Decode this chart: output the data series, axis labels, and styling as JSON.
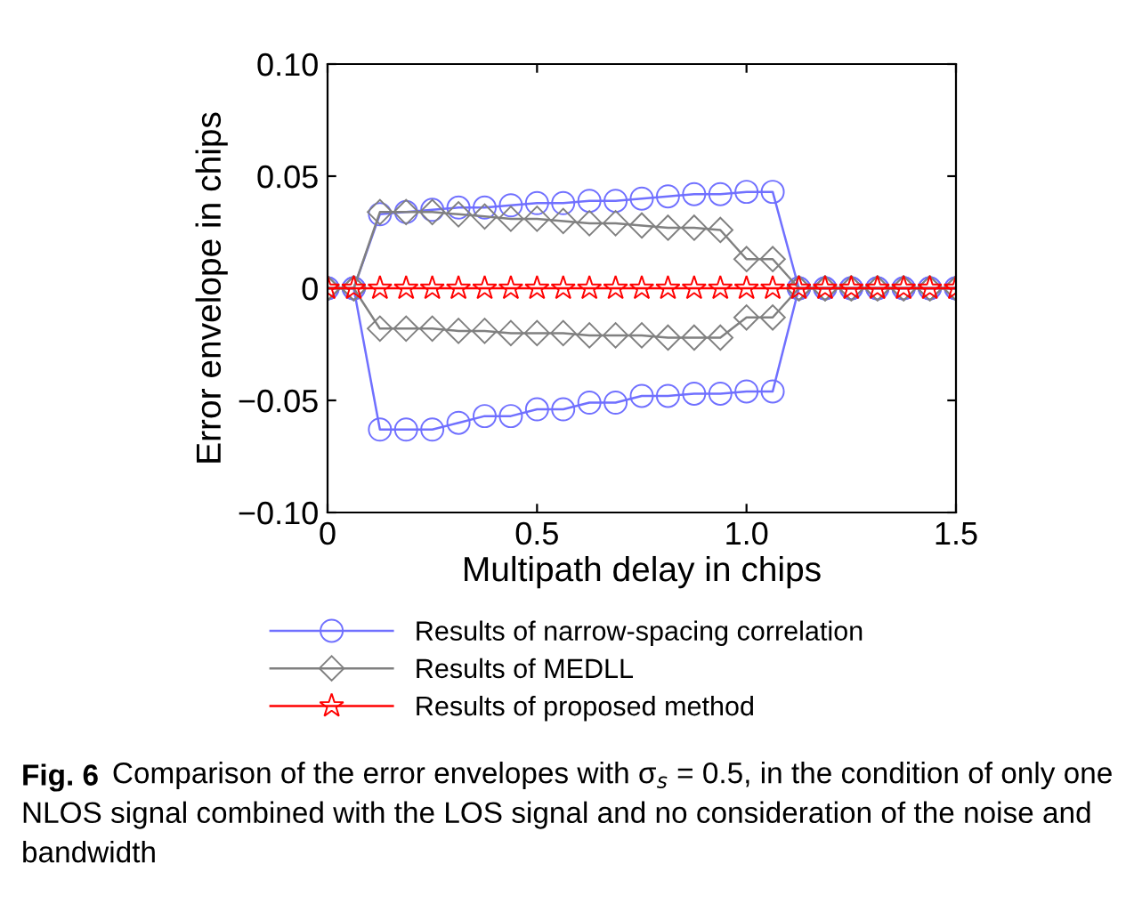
{
  "chart_data": {
    "type": "line",
    "x": [
      0,
      0.0625,
      0.125,
      0.1875,
      0.25,
      0.3125,
      0.375,
      0.4375,
      0.5,
      0.5625,
      0.625,
      0.6875,
      0.75,
      0.8125,
      0.875,
      0.9375,
      1.0,
      1.0625,
      1.125,
      1.1875,
      1.25,
      1.3125,
      1.375,
      1.4375,
      1.5
    ],
    "series": [
      {
        "name": "Results of narrow-spacing correlation",
        "color": "#7070ff",
        "marker": "circle",
        "values": [
          0,
          0,
          0.033,
          0.034,
          0.035,
          0.036,
          0.036,
          0.037,
          0.038,
          0.038,
          0.039,
          0.039,
          0.04,
          0.041,
          0.042,
          0.042,
          0.043,
          0.043,
          0,
          0,
          0,
          0,
          0,
          0,
          0
        ]
      },
      {
        "color": "#7070ff",
        "marker": "circle",
        "values": [
          0,
          0,
          -0.063,
          -0.063,
          -0.063,
          -0.06,
          -0.057,
          -0.057,
          -0.054,
          -0.054,
          -0.051,
          -0.051,
          -0.048,
          -0.048,
          -0.047,
          -0.047,
          -0.046,
          -0.046,
          0,
          0,
          0,
          0,
          0,
          0,
          0
        ]
      },
      {
        "name": "Results of MEDLL",
        "color": "#808080",
        "marker": "diamond",
        "values": [
          0,
          0,
          0.034,
          0.034,
          0.034,
          0.033,
          0.032,
          0.031,
          0.031,
          0.03,
          0.029,
          0.029,
          0.028,
          0.027,
          0.027,
          0.026,
          0.013,
          0.013,
          0,
          0,
          0,
          0,
          0,
          0,
          0
        ]
      },
      {
        "color": "#808080",
        "marker": "diamond",
        "values": [
          0,
          0,
          -0.018,
          -0.018,
          -0.018,
          -0.019,
          -0.019,
          -0.02,
          -0.02,
          -0.02,
          -0.021,
          -0.021,
          -0.021,
          -0.022,
          -0.022,
          -0.022,
          -0.013,
          -0.013,
          0,
          0,
          0,
          0,
          0,
          0,
          0
        ]
      },
      {
        "name": "Results of proposed method",
        "color": "#ff0000",
        "marker": "star",
        "values": [
          0,
          0,
          0,
          0,
          0,
          0,
          0,
          0,
          0,
          0,
          0,
          0,
          0,
          0,
          0,
          0,
          0,
          0,
          0,
          0,
          0,
          0,
          0,
          0,
          0
        ]
      }
    ],
    "xlabel": "Multipath delay in chips",
    "ylabel": "Error envelope in chips",
    "xlim": [
      0,
      1.5
    ],
    "xticks": [
      0,
      0.5,
      {
        "value": 1,
        "label": "1.0"
      },
      1.5
    ],
    "ylim": [
      -0.1,
      0.1
    ],
    "yticks": [
      {
        "value": -0.1,
        "label": "−0.10"
      },
      {
        "value": -0.05,
        "label": "−0.05"
      },
      0,
      0.05,
      {
        "value": 0.1,
        "label": "0.10"
      }
    ],
    "grid": false,
    "legend": "bottom",
    "annotations": [
      "Fig. 6",
      "Comparison of the error envelopes with σ$_{s}$ = 0.5, in the condition of only one NLOS signal combined with the LOS signal and no consideration of the noise and bandwidth"
    ]
  }
}
